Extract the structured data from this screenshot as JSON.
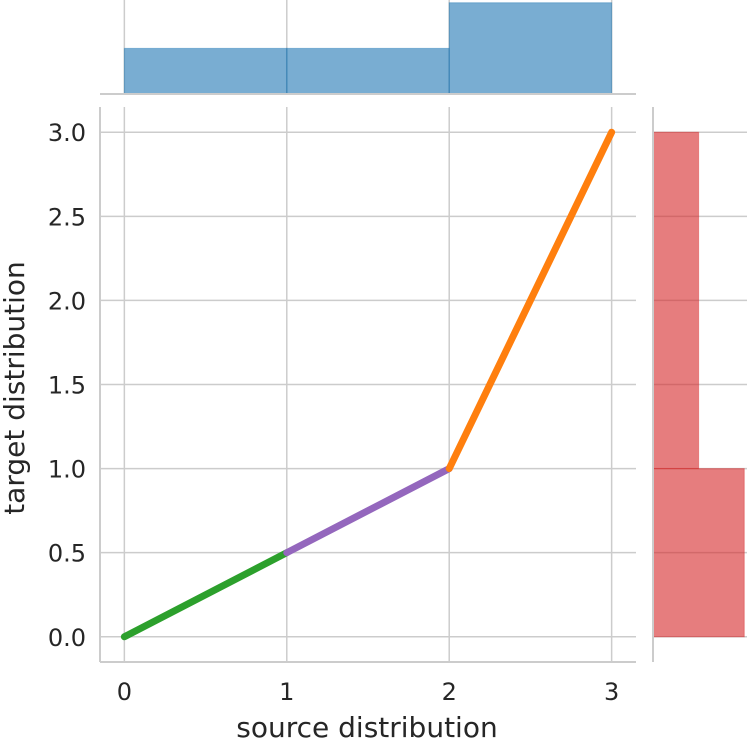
{
  "chart_data": {
    "type": "line",
    "title": "",
    "xlabel": "source distribution",
    "ylabel": "target distribution",
    "xlim": [
      -0.15,
      3.15
    ],
    "ylim": [
      -0.15,
      3.15
    ],
    "x_ticks": [
      0,
      1,
      2,
      3
    ],
    "x_tick_labels": [
      "0",
      "1",
      "2",
      "3"
    ],
    "y_ticks": [
      0,
      0.5,
      1,
      1.5,
      2,
      2.5,
      3
    ],
    "y_tick_labels": [
      "0.0",
      "0.5",
      "1.0",
      "1.5",
      "2.0",
      "2.5",
      "3.0"
    ],
    "grid": true,
    "legend": "none",
    "segments": [
      {
        "x": [
          0,
          1
        ],
        "y": [
          0,
          0.5
        ],
        "color": "#2ca02c"
      },
      {
        "x": [
          1,
          2
        ],
        "y": [
          0.5,
          1
        ],
        "color": "#9467bd"
      },
      {
        "x": [
          2,
          3
        ],
        "y": [
          1,
          3
        ],
        "color": "#ff7f0e"
      }
    ],
    "marginal_x_histogram": {
      "type": "bar",
      "bin_edges": [
        0,
        1,
        2,
        3
      ],
      "density": [
        0.25,
        0.25,
        0.5
      ],
      "color": "#1f77b4"
    },
    "marginal_y_histogram": {
      "type": "bar",
      "orientation": "horizontal",
      "bin_edges": [
        0,
        1,
        3
      ],
      "density": [
        0.5,
        0.25
      ],
      "color": "#d62728"
    }
  }
}
